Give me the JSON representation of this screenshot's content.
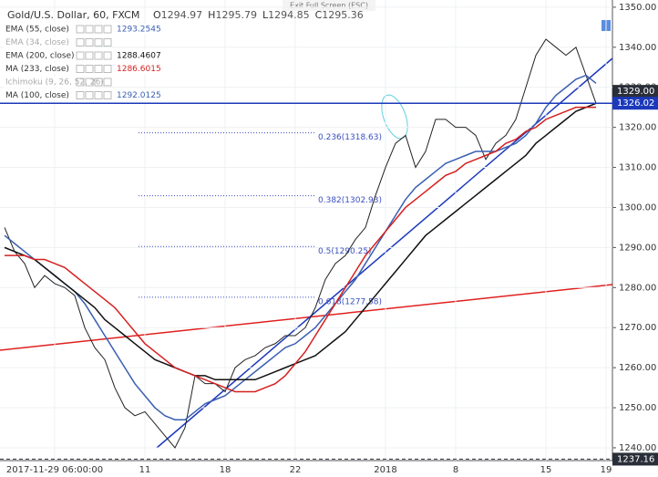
{
  "chart_data": {
    "type": "line",
    "title": "Gold/U.S. Dollar, 60, FXCM",
    "banner": "Exit Full Screen (ESC)",
    "ohlc": [
      {
        "label": "O",
        "value": 1294.97
      },
      {
        "label": "H",
        "value": 1295.79
      },
      {
        "label": "L",
        "value": 1294.85
      },
      {
        "label": "C",
        "value": 1295.36
      }
    ],
    "categories": [
      null,
      null,
      null,
      null,
      null,
      "2017-11-29 06:00:00",
      null,
      null,
      null,
      null,
      null,
      null,
      null,
      null,
      "11",
      null,
      null,
      null,
      null,
      null,
      null,
      null,
      "18",
      null,
      null,
      null,
      null,
      null,
      null,
      "22",
      null,
      null,
      null,
      null,
      null,
      null,
      null,
      null,
      "2018",
      null,
      null,
      null,
      null,
      null,
      null,
      "8",
      null,
      null,
      null,
      null,
      null,
      null,
      null,
      null,
      "15",
      null,
      null,
      null,
      null,
      null,
      "19"
    ],
    "series": [
      {
        "color": "#222222",
        "values": [
          1295,
          1289,
          1286,
          1280,
          1283,
          1281,
          1280,
          1278,
          1270,
          1265,
          1262,
          1255,
          1250,
          1248,
          1249,
          1246,
          1243,
          1240,
          1245,
          1258,
          1256,
          1256,
          1254,
          1260,
          1262,
          1263,
          1265,
          1266,
          1268,
          1268,
          1270,
          1275,
          1282,
          1286,
          1288,
          1292,
          1295,
          1303,
          1310,
          1316,
          1318,
          1310,
          1314,
          1322,
          1322,
          1320,
          1320,
          1318,
          1312,
          1316,
          1318,
          1322,
          1330,
          1338,
          1342,
          1340,
          1338,
          1340,
          1333,
          1326,
          null
        ]
      },
      {
        "name": "EMA (55, close)",
        "last_value": 1293.2545,
        "color": "#3a5fb0",
        "values": [
          1293,
          1291,
          1289,
          1287,
          1285,
          1283,
          1281,
          1279,
          1276,
          1272,
          1268,
          1264,
          1260,
          1256,
          1253,
          1250,
          1248,
          1247,
          1247,
          1249,
          1251,
          1252,
          1253,
          1255,
          1257,
          1259,
          1261,
          1263,
          1265,
          1266,
          1268,
          1270,
          1273,
          1276,
          1279,
          1282,
          1286,
          1290,
          1294,
          1298,
          1302,
          1305,
          1307,
          1309,
          1311,
          1312,
          1313,
          1314,
          1314,
          1314,
          1315,
          1316,
          1318,
          1321,
          1325,
          1328,
          1330,
          1332,
          1333,
          1331,
          null
        ]
      },
      {
        "name": "EMA (34, close)",
        "hidden": true,
        "color": "#9a9a9a"
      },
      {
        "name": "EMA (200, close)",
        "last_value": 1288.4607,
        "color": "#111111",
        "values": [
          1290,
          1289,
          1288,
          1287,
          1285,
          1283,
          1281,
          1279,
          1277,
          1275,
          1272,
          1270,
          1268,
          1266,
          1264,
          1262,
          1261,
          1260,
          1259,
          1258,
          1258,
          1257,
          1257,
          1257,
          1257,
          1257,
          1258,
          1259,
          1260,
          1261,
          1262,
          1263,
          1265,
          1267,
          1269,
          1272,
          1275,
          1278,
          1281,
          1284,
          1287,
          1290,
          1293,
          1295,
          1297,
          1299,
          1301,
          1303,
          1305,
          1307,
          1309,
          1311,
          1313,
          1316,
          1318,
          1320,
          1322,
          1324,
          1325,
          1326,
          null
        ]
      },
      {
        "name": "MA (233, close)",
        "last_value": 1286.6015,
        "color": "#d62020",
        "values": [
          1288,
          1288,
          1288,
          1287,
          1287,
          1286,
          1285,
          1283,
          1281,
          1279,
          1277,
          1275,
          1272,
          1269,
          1266,
          1264,
          1262,
          1260,
          1259,
          1258,
          1257,
          1256,
          1255,
          1254,
          1254,
          1254,
          1255,
          1256,
          1258,
          1261,
          1264,
          1268,
          1272,
          1276,
          1280,
          1284,
          1288,
          1291,
          1294,
          1297,
          1300,
          1302,
          1304,
          1306,
          1308,
          1309,
          1311,
          1312,
          1313,
          1314,
          1316,
          1317,
          1319,
          1320,
          1322,
          1323,
          1324,
          1325,
          1325,
          1325,
          null
        ]
      },
      {
        "name": "Ichimoku (9, 26, 52, 26)",
        "hidden": true,
        "color": "#9a9a9a"
      },
      {
        "name": "MA (100, close)",
        "last_value": 1292.0125,
        "color": "#3a5fb0"
      }
    ],
    "fib": [
      {
        "label": "0.236(1318.63)",
        "value": 1318.63
      },
      {
        "label": "0.382(1302.93)",
        "value": 1302.93
      },
      {
        "label": "0.5(1290.25)",
        "value": 1290.25
      },
      {
        "label": "0.618(1277.58)",
        "value": 1277.58
      }
    ],
    "price_tags": [
      {
        "value": 1329.0,
        "label": "1329.00",
        "color": "#2a2e39"
      },
      {
        "value": 1326.02,
        "label": "1326.02",
        "color": "#1c39bb"
      },
      {
        "value": 1237.16,
        "label": "1237.16",
        "color": "#2a2e39"
      }
    ],
    "ylim": [
      1236.8,
      1351.8
    ],
    "yticks": [
      {
        "value": 1240,
        "label": "1240.00"
      },
      {
        "value": 1250,
        "label": "1250.00"
      },
      {
        "value": 1260,
        "label": "1260.00"
      },
      {
        "value": 1270,
        "label": "1270.00"
      },
      {
        "value": 1280,
        "label": "1280.00"
      },
      {
        "value": 1290,
        "label": "1290.00"
      },
      {
        "value": 1300,
        "label": "1300.00"
      },
      {
        "value": 1310,
        "label": "1310.00"
      },
      {
        "value": 1320,
        "label": "1320.00"
      },
      {
        "value": 1330,
        "label": "1330.00"
      },
      {
        "value": 1340,
        "label": "1340.00"
      },
      {
        "value": 1350,
        "label": "1350.00"
      }
    ],
    "grid": true
  }
}
